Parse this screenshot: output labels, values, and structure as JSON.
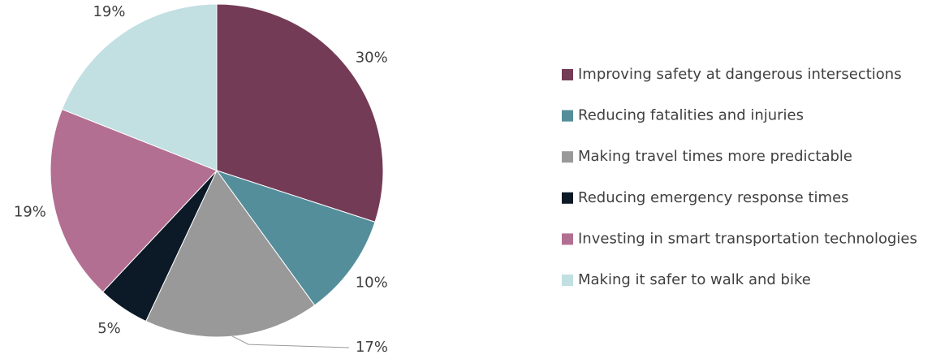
{
  "chart_data": {
    "type": "pie",
    "categories": [
      "Improving safety at dangerous intersections",
      "Reducing fatalities and injuries",
      "Making travel times more predictable",
      "Reducing emergency response times",
      "Investing in smart transportation technologies",
      "Making it safer to walk and bike"
    ],
    "values": [
      30,
      10,
      17,
      5,
      19,
      19
    ],
    "value_labels": [
      "30%",
      "10%",
      "17%",
      "5%",
      "19%",
      "19%"
    ],
    "colors": [
      "#733b56",
      "#548e9b",
      "#999999",
      "#0b1a26",
      "#b36f91",
      "#c2dfe2"
    ],
    "legend": "right"
  }
}
